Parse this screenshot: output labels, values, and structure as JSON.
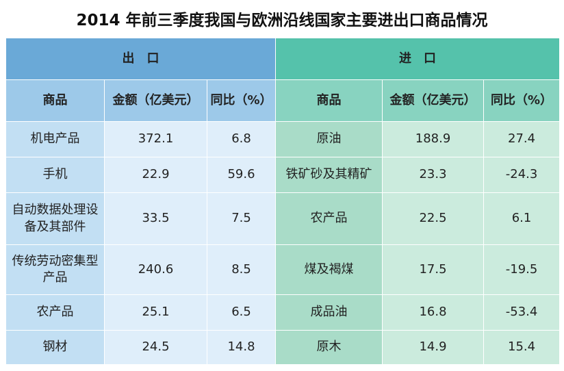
{
  "title": "2014 年前三季度我国与欧洲沿线国家主要进出口商品情况",
  "chart_data": {
    "type": "table",
    "sections": [
      "出　口",
      "进　口"
    ],
    "columns": [
      "商品",
      "金额（亿美元）",
      "同比（%）"
    ],
    "export_rows": [
      {
        "product": "机电产品",
        "amount": "372.1",
        "yoy": "6.8"
      },
      {
        "product": "手机",
        "amount": "22.9",
        "yoy": "59.6"
      },
      {
        "product": "自动数据处理设备及其部件",
        "amount": "33.5",
        "yoy": "7.5"
      },
      {
        "product": "传统劳动密集型产品",
        "amount": "240.6",
        "yoy": "8.5"
      },
      {
        "product": "农产品",
        "amount": "25.1",
        "yoy": "6.5"
      },
      {
        "product": "钢材",
        "amount": "24.5",
        "yoy": "14.8"
      }
    ],
    "import_rows": [
      {
        "product": "原油",
        "amount": "188.9",
        "yoy": "27.4"
      },
      {
        "product": "铁矿砂及其精矿",
        "amount": "23.3",
        "yoy": "-24.3"
      },
      {
        "product": "农产品",
        "amount": "22.5",
        "yoy": "6.1"
      },
      {
        "product": "煤及褐煤",
        "amount": "17.5",
        "yoy": "-19.5"
      },
      {
        "product": "成品油",
        "amount": "16.8",
        "yoy": "-53.4"
      },
      {
        "product": "原木",
        "amount": "14.9",
        "yoy": "15.4"
      }
    ]
  }
}
